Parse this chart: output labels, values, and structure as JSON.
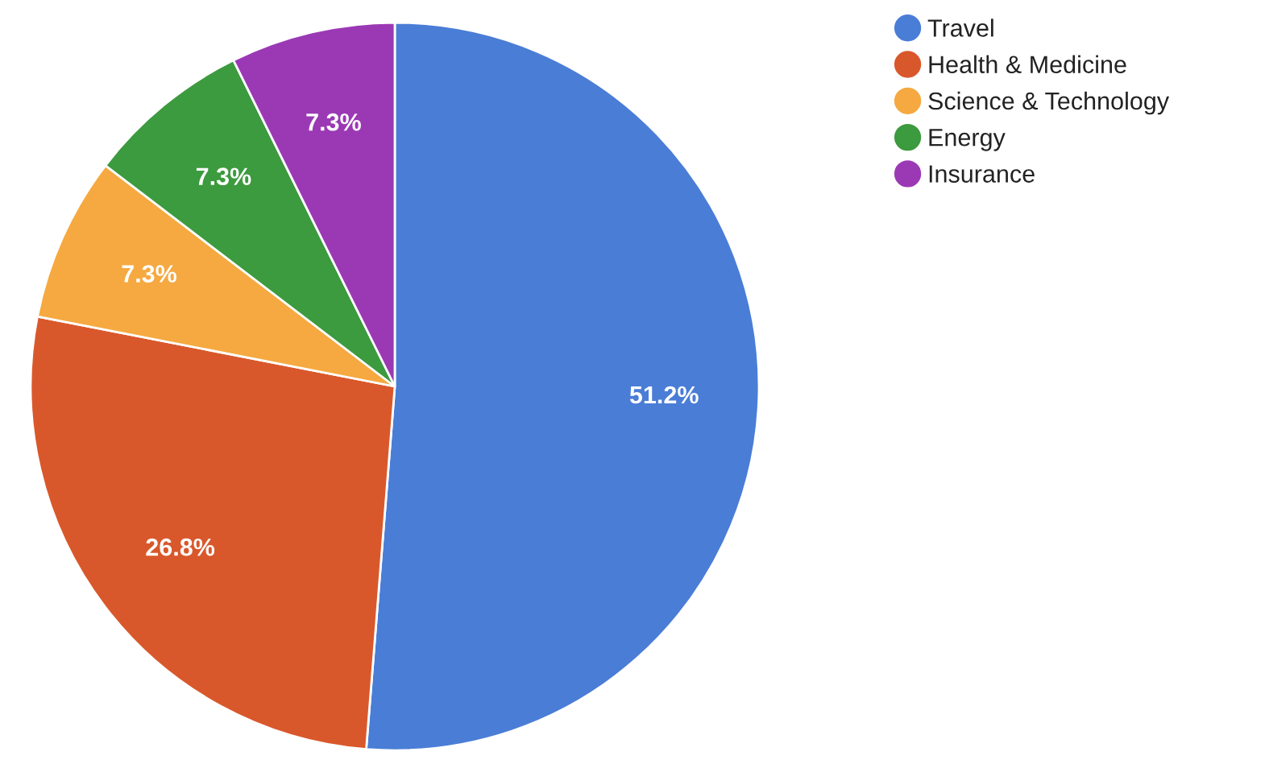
{
  "chart_data": {
    "type": "pie",
    "categories": [
      "Travel",
      "Health & Medicine",
      "Science & Technology",
      "Energy",
      "Insurance"
    ],
    "values": [
      51.2,
      26.8,
      7.3,
      7.3,
      7.3
    ],
    "colors": [
      "#4a7dd6",
      "#d9582b",
      "#f5a940",
      "#3c9a3f",
      "#9b39b5"
    ],
    "value_labels": [
      "51.2%",
      "26.8%",
      "7.3%",
      "7.3%",
      "7.3%"
    ],
    "legend": "right"
  }
}
